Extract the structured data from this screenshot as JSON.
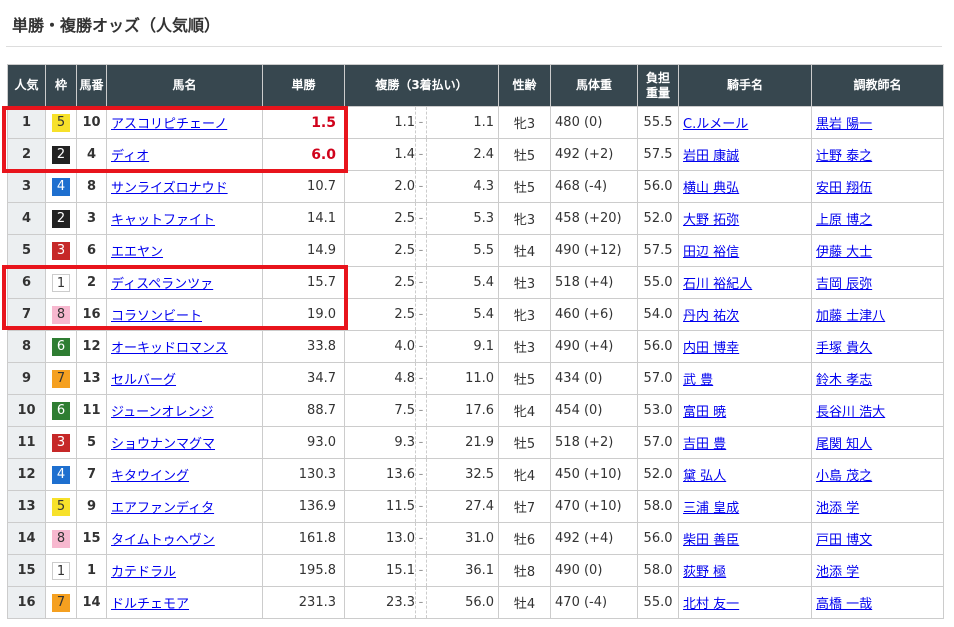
{
  "title": "単勝・複勝オッズ（人気順）",
  "headers": {
    "popularity": "人気",
    "frame": "枠",
    "number": "馬番",
    "horse": "馬名",
    "win": "単勝",
    "place": "複勝（3着払い）",
    "sex_age": "性齢",
    "weight": "馬体重",
    "burden": "負担重量",
    "jockey": "騎手名",
    "trainer": "調教師名"
  },
  "frame_colors": {
    "1": {
      "bg": "#ffffff",
      "fg": "#333333",
      "border": "#cccccc"
    },
    "2": {
      "bg": "#222222",
      "fg": "#ffffff"
    },
    "3": {
      "bg": "#c62828",
      "fg": "#ffffff"
    },
    "4": {
      "bg": "#1e6fcf",
      "fg": "#ffffff"
    },
    "5": {
      "bg": "#f7e12a",
      "fg": "#333333"
    },
    "6": {
      "bg": "#2e7d32",
      "fg": "#ffffff"
    },
    "7": {
      "bg": "#f5a020",
      "fg": "#333333"
    },
    "8": {
      "bg": "#f7b8cf",
      "fg": "#333333"
    }
  },
  "highlight_color": "#e8141c",
  "rows": [
    {
      "pop": "1",
      "frame": "5",
      "num": "10",
      "horse": "アスコリピチェーノ",
      "win": "1.5",
      "pmin": "1.1",
      "pmax": "1.1",
      "sex": "牝3",
      "weight": "480 (0)",
      "burden": "55.5",
      "jockey": "C.ルメール",
      "trainer": "黒岩 陽一",
      "hot": true
    },
    {
      "pop": "2",
      "frame": "2",
      "num": "4",
      "horse": "ディオ",
      "win": "6.0",
      "pmin": "1.4",
      "pmax": "2.4",
      "sex": "牡5",
      "weight": "492 (+2)",
      "burden": "57.5",
      "jockey": "岩田 康誠",
      "trainer": "辻野 泰之",
      "hot": true
    },
    {
      "pop": "3",
      "frame": "4",
      "num": "8",
      "horse": "サンライズロナウド",
      "win": "10.7",
      "pmin": "2.0",
      "pmax": "4.3",
      "sex": "牡5",
      "weight": "468 (-4)",
      "burden": "56.0",
      "jockey": "横山 典弘",
      "trainer": "安田 翔伍"
    },
    {
      "pop": "4",
      "frame": "2",
      "num": "3",
      "horse": "キャットファイト",
      "win": "14.1",
      "pmin": "2.5",
      "pmax": "5.3",
      "sex": "牝3",
      "weight": "458 (+20)",
      "burden": "52.0",
      "jockey": "大野 拓弥",
      "trainer": "上原 博之"
    },
    {
      "pop": "5",
      "frame": "3",
      "num": "6",
      "horse": "エエヤン",
      "win": "14.9",
      "pmin": "2.5",
      "pmax": "5.5",
      "sex": "牡4",
      "weight": "490 (+12)",
      "burden": "57.5",
      "jockey": "田辺 裕信",
      "trainer": "伊藤 大士"
    },
    {
      "pop": "6",
      "frame": "1",
      "num": "2",
      "horse": "ディスペランツァ",
      "win": "15.7",
      "pmin": "2.5",
      "pmax": "5.4",
      "sex": "牡3",
      "weight": "518 (+4)",
      "burden": "55.0",
      "jockey": "石川 裕紀人",
      "trainer": "吉岡 辰弥"
    },
    {
      "pop": "7",
      "frame": "8",
      "num": "16",
      "horse": "コラソンビート",
      "win": "19.0",
      "pmin": "2.5",
      "pmax": "5.4",
      "sex": "牝3",
      "weight": "460 (+6)",
      "burden": "54.0",
      "jockey": "丹内 祐次",
      "trainer": "加藤 士津八"
    },
    {
      "pop": "8",
      "frame": "6",
      "num": "12",
      "horse": "オーキッドロマンス",
      "win": "33.8",
      "pmin": "4.0",
      "pmax": "9.1",
      "sex": "牡3",
      "weight": "490 (+4)",
      "burden": "56.0",
      "jockey": "内田 博幸",
      "trainer": "手塚 貴久"
    },
    {
      "pop": "9",
      "frame": "7",
      "num": "13",
      "horse": "セルバーグ",
      "win": "34.7",
      "pmin": "4.8",
      "pmax": "11.0",
      "sex": "牡5",
      "weight": "434 (0)",
      "burden": "57.0",
      "jockey": "武 豊",
      "trainer": "鈴木 孝志"
    },
    {
      "pop": "10",
      "frame": "6",
      "num": "11",
      "horse": "ジューンオレンジ",
      "win": "88.7",
      "pmin": "7.5",
      "pmax": "17.6",
      "sex": "牝4",
      "weight": "454 (0)",
      "burden": "53.0",
      "jockey": "富田 暁",
      "trainer": "長谷川 浩大"
    },
    {
      "pop": "11",
      "frame": "3",
      "num": "5",
      "horse": "ショウナンマグマ",
      "win": "93.0",
      "pmin": "9.3",
      "pmax": "21.9",
      "sex": "牡5",
      "weight": "518 (+2)",
      "burden": "57.0",
      "jockey": "吉田 豊",
      "trainer": "尾関 知人"
    },
    {
      "pop": "12",
      "frame": "4",
      "num": "7",
      "horse": "キタウイング",
      "win": "130.3",
      "pmin": "13.6",
      "pmax": "32.5",
      "sex": "牝4",
      "weight": "450 (+10)",
      "burden": "52.0",
      "jockey": "黛 弘人",
      "trainer": "小島 茂之"
    },
    {
      "pop": "13",
      "frame": "5",
      "num": "9",
      "horse": "エアファンディタ",
      "win": "136.9",
      "pmin": "11.5",
      "pmax": "27.4",
      "sex": "牡7",
      "weight": "470 (+10)",
      "burden": "58.0",
      "jockey": "三浦 皇成",
      "trainer": "池添 学"
    },
    {
      "pop": "14",
      "frame": "8",
      "num": "15",
      "horse": "タイムトゥヘヴン",
      "win": "161.8",
      "pmin": "13.0",
      "pmax": "31.0",
      "sex": "牡6",
      "weight": "492 (+4)",
      "burden": "56.0",
      "jockey": "柴田 善臣",
      "trainer": "戸田 博文"
    },
    {
      "pop": "15",
      "frame": "1",
      "num": "1",
      "horse": "カテドラル",
      "win": "195.8",
      "pmin": "15.1",
      "pmax": "36.1",
      "sex": "牡8",
      "weight": "490 (0)",
      "burden": "58.0",
      "jockey": "荻野 極",
      "trainer": "池添 学"
    },
    {
      "pop": "16",
      "frame": "7",
      "num": "14",
      "horse": "ドルチェモア",
      "win": "231.3",
      "pmin": "23.3",
      "pmax": "56.0",
      "sex": "牡4",
      "weight": "470 (-4)",
      "burden": "55.0",
      "jockey": "北村 友一",
      "trainer": "高橋 一哉"
    }
  ],
  "place_separator": "-"
}
